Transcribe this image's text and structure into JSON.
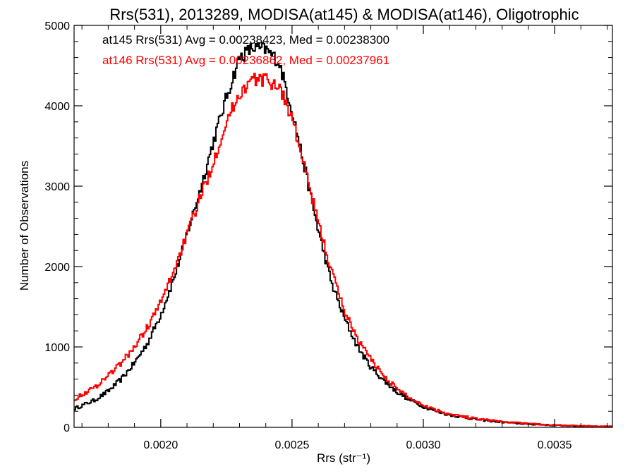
{
  "chart_data": {
    "type": "line",
    "title": "Rrs(531), 2013289, MODISA(at145) & MODISA(at146), Oligotrophic",
    "xlabel": "Rrs (str⁻¹)",
    "ylabel": "Number of Observations",
    "xlim": [
      0.00167,
      0.00372
    ],
    "ylim": [
      0,
      5000
    ],
    "xticks": [
      0.002,
      0.0025,
      0.003,
      0.0035
    ],
    "xtick_labels": [
      "0.0020",
      "0.0025",
      "0.0030",
      "0.0035"
    ],
    "yticks": [
      0,
      1000,
      2000,
      3000,
      4000,
      5000
    ],
    "ytick_labels": [
      "0",
      "1000",
      "2000",
      "3000",
      "4000",
      "5000"
    ],
    "grid": false,
    "legend_position": "top-left",
    "series": [
      {
        "name": "at145",
        "color": "#000000",
        "annotation": "at145 Rrs(531) Avg = 0.00238423, Med = 0.00238300",
        "x": [
          0.00167,
          0.00175,
          0.0018,
          0.00185,
          0.0019,
          0.00195,
          0.002,
          0.00205,
          0.0021,
          0.00215,
          0.0022,
          0.00225,
          0.0023,
          0.00235,
          0.0024,
          0.00245,
          0.0025,
          0.00255,
          0.0026,
          0.00265,
          0.0027,
          0.00275,
          0.0028,
          0.00285,
          0.0029,
          0.00295,
          0.003,
          0.00305,
          0.0031,
          0.0032,
          0.0033,
          0.0034,
          0.0035,
          0.0036,
          0.00372
        ],
        "y": [
          230,
          340,
          450,
          600,
          800,
          1050,
          1400,
          1850,
          2400,
          2950,
          3550,
          4100,
          4600,
          4720,
          4700,
          4550,
          3950,
          3200,
          2450,
          1800,
          1350,
          1000,
          750,
          580,
          440,
          340,
          260,
          200,
          155,
          100,
          65,
          40,
          25,
          15,
          10
        ]
      },
      {
        "name": "at146",
        "color": "#ff0000",
        "annotation": "at146 Rrs(531) Avg = 0.00236862, Med = 0.00237961",
        "x": [
          0.00167,
          0.00175,
          0.0018,
          0.00185,
          0.0019,
          0.00195,
          0.002,
          0.00205,
          0.0021,
          0.00215,
          0.0022,
          0.00225,
          0.0023,
          0.00235,
          0.0024,
          0.00245,
          0.0025,
          0.00255,
          0.0026,
          0.00265,
          0.0027,
          0.00275,
          0.0028,
          0.00285,
          0.0029,
          0.00295,
          0.003,
          0.00305,
          0.0031,
          0.0032,
          0.0033,
          0.0034,
          0.0035,
          0.0036,
          0.00372
        ],
        "y": [
          350,
          500,
          650,
          800,
          1000,
          1250,
          1550,
          1950,
          2400,
          2850,
          3300,
          3800,
          4150,
          4330,
          4320,
          4250,
          3850,
          3200,
          2550,
          1950,
          1450,
          1100,
          850,
          640,
          480,
          360,
          280,
          215,
          165,
          110,
          70,
          45,
          28,
          18,
          12
        ]
      }
    ]
  }
}
